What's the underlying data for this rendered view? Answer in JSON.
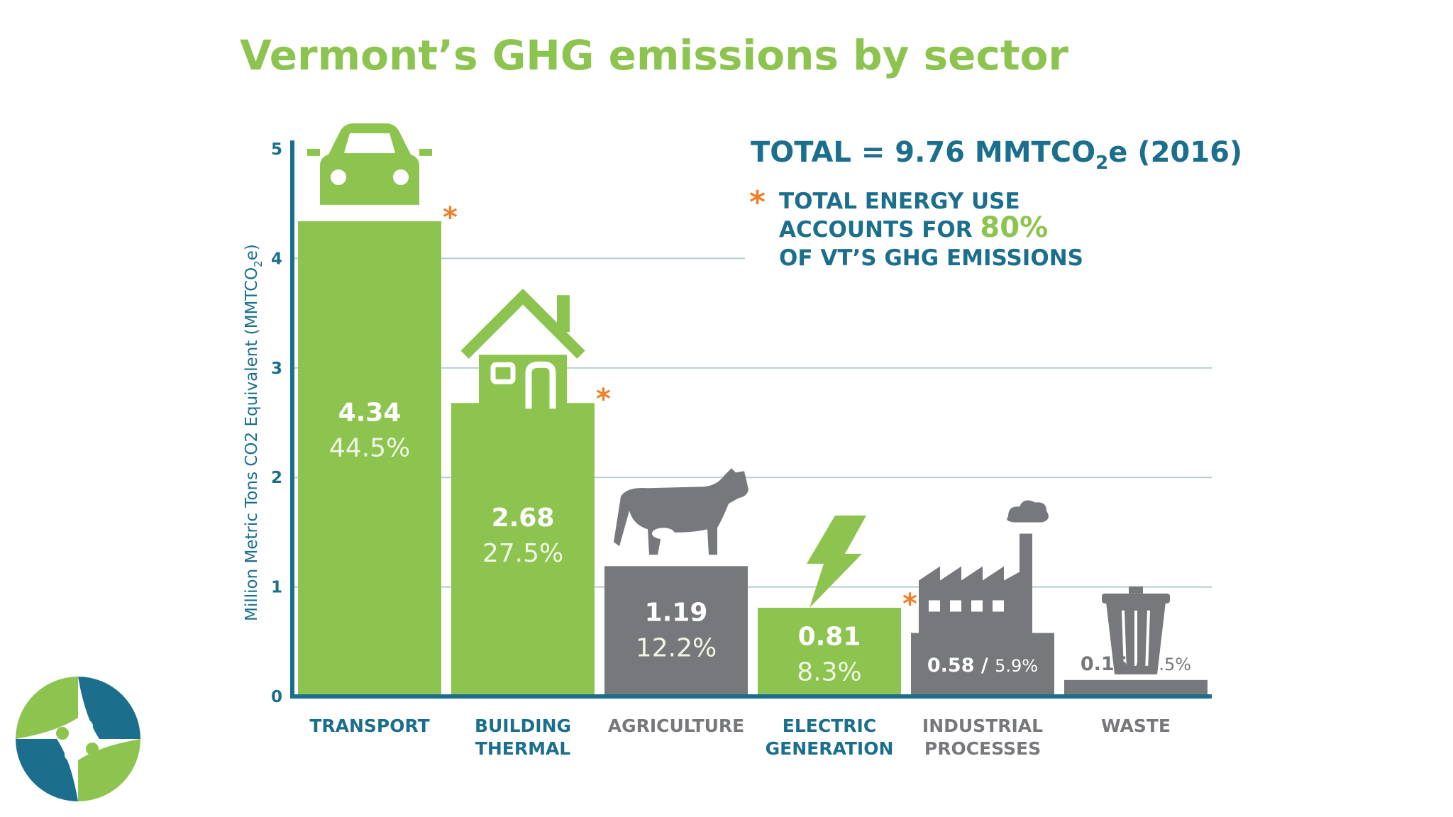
{
  "colors": {
    "title": "#8dc44f",
    "navy": "#1b6f8c",
    "energy": "#8dc44f",
    "other": "#77787b",
    "asterisk": "#f07f2c",
    "grid": "#b9cbd2",
    "bar_value": "#ffffff",
    "bar_pct": "#eef6e6"
  },
  "slide": {
    "title": "Vermont’s GHG emissions by sector",
    "total_prefix": "TOTAL = 9.76 MMTCO",
    "total_sub": "2",
    "total_suffix": "e (2016)",
    "note_asterisk": "*",
    "note_line1": "TOTAL ENERGY USE",
    "note_line2_prefix": "ACCOUNTS FOR ",
    "note_line2_highlight": "80%",
    "note_line3": "OF VT’S GHG EMISSIONS"
  },
  "chart_data": {
    "type": "bar",
    "title": "Vermont’s GHG emissions by sector",
    "ylabel_prefix": "Million Metric Tons CO2 Equivalent (MMTCO",
    "ylabel_sub": "2",
    "ylabel_suffix": "e)",
    "ylim": [
      0,
      5
    ],
    "yticks": [
      0,
      1,
      2,
      3,
      4,
      5
    ],
    "grid": true,
    "categories": [
      [
        "TRANSPORT"
      ],
      [
        "BUILDING",
        "THERMAL"
      ],
      [
        "AGRICULTURE"
      ],
      [
        "ELECTRIC",
        "GENERATION"
      ],
      [
        "INDUSTRIAL",
        "PROCESSES"
      ],
      [
        "WASTE"
      ]
    ],
    "values": [
      4.34,
      2.68,
      1.19,
      0.81,
      0.58,
      0.15
    ],
    "value_labels": [
      "4.34",
      "2.68",
      "1.19",
      "0.81",
      "0.58",
      "0.15"
    ],
    "percent_labels": [
      "44.5%",
      "27.5%",
      "12.2%",
      "8.3%",
      "5.9%",
      "1.5%"
    ],
    "energy_use": [
      true,
      true,
      false,
      true,
      false,
      false
    ],
    "icons": [
      "car-icon",
      "house-icon",
      "cow-icon",
      "lightning-icon",
      "factory-icon",
      "trash-can-icon"
    ]
  },
  "logo": {
    "name": "vermont-logo"
  }
}
